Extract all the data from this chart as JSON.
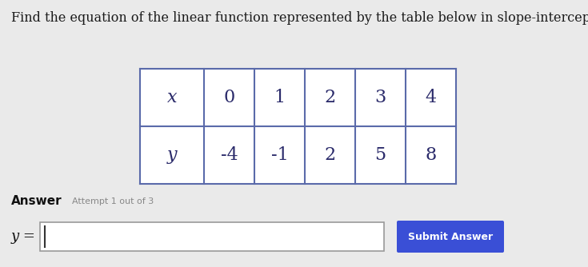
{
  "title": "Find the equation of the linear function represented by the table below in slope-intercept form.",
  "title_fontsize": 11.5,
  "title_color": "#1a1a1a",
  "bg_color": "#eaeaea",
  "table_x_labels": [
    "x",
    "0",
    "1",
    "2",
    "3",
    "4"
  ],
  "table_y_labels": [
    "y",
    "-4",
    "-1",
    "2",
    "5",
    "8"
  ],
  "answer_label": "Answer",
  "attempt_label": "Attempt 1 out of 3",
  "y_equals": "y =",
  "submit_btn_text": "Submit Answer",
  "submit_btn_color": "#3a4fd6",
  "submit_btn_text_color": "#ffffff",
  "input_box_color": "#ffffff",
  "table_bg": "#ffffff",
  "table_border_color": "#5a6aaa",
  "cell_text_color": "#2a2a6a",
  "answer_color": "#111111",
  "attempt_color": "#888888"
}
